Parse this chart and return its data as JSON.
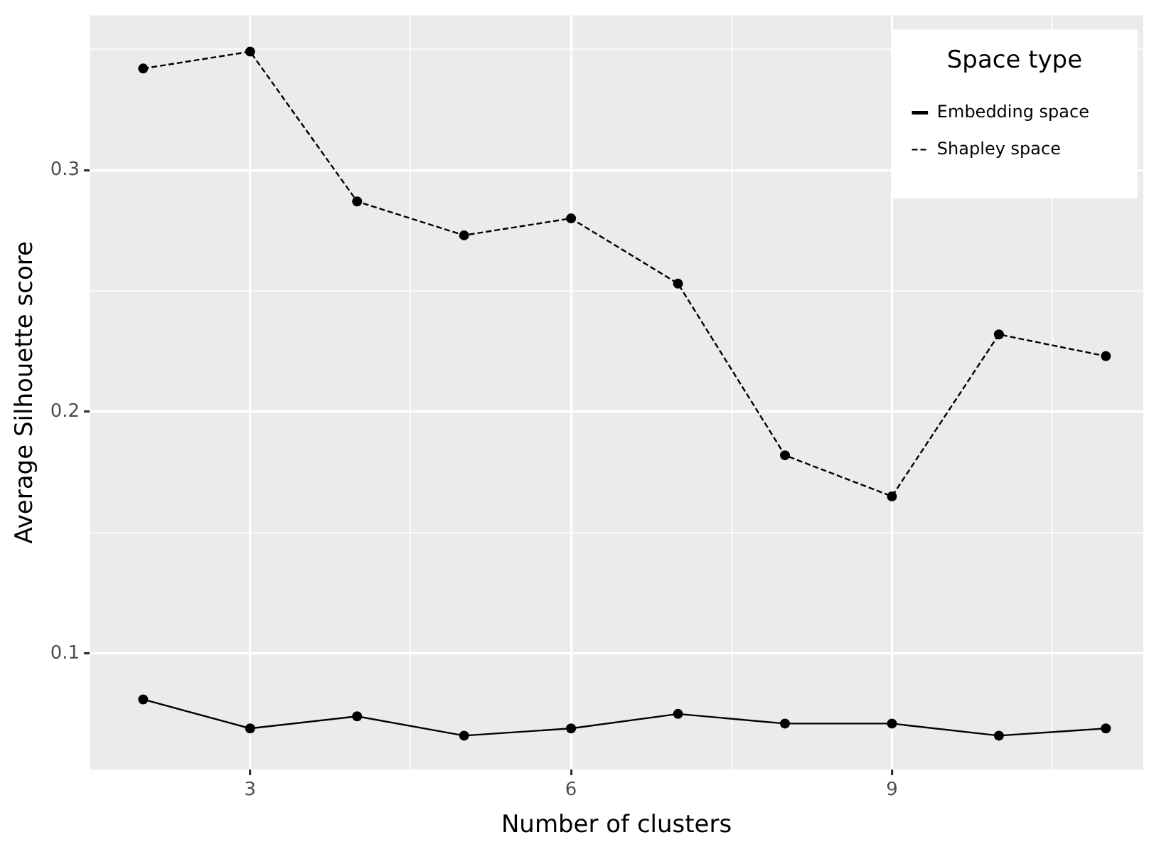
{
  "chart_data": {
    "type": "line",
    "xlabel": "Number of clusters",
    "ylabel": "Average Silhouette score",
    "legend_title": "Space type",
    "x": [
      2,
      3,
      4,
      5,
      6,
      7,
      8,
      9,
      10,
      11
    ],
    "series": [
      {
        "name": "Embedding space",
        "color": "#000000",
        "line_style": "solid",
        "values": [
          0.081,
          0.069,
          0.074,
          0.066,
          0.069,
          0.075,
          0.071,
          0.071,
          0.066,
          0.069
        ]
      },
      {
        "name": "Shapley space",
        "color": "#000000",
        "line_style": "dashed",
        "values": [
          0.342,
          0.349,
          0.287,
          0.273,
          0.28,
          0.253,
          0.182,
          0.165,
          0.232,
          0.223
        ]
      }
    ],
    "xlim": [
      1.5,
      11.35
    ],
    "ylim": [
      0.052,
      0.364
    ],
    "xticks": [
      {
        "value": 1.5,
        "label": null
      },
      3,
      {
        "value": 4.5,
        "label": null
      },
      6,
      {
        "value": 7.5,
        "label": null
      },
      9,
      {
        "value": 10.5,
        "label": null
      }
    ],
    "yticks": [
      0.1,
      {
        "value": 0.15,
        "label": null
      },
      0.2,
      {
        "value": 0.25,
        "label": null
      },
      0.3,
      {
        "value": 0.35,
        "label": null
      }
    ],
    "grid": true,
    "legend": "top right",
    "marker": "circle"
  }
}
